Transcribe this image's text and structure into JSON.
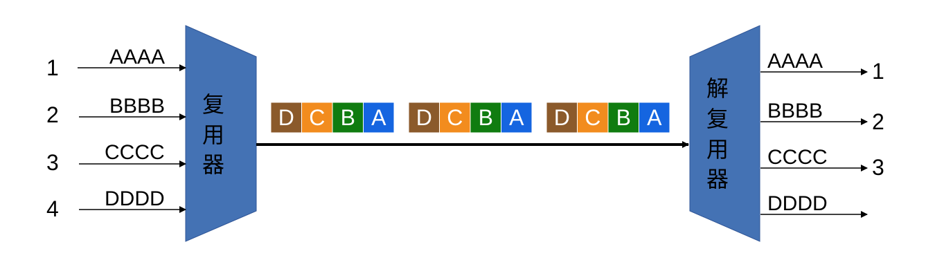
{
  "colors": {
    "device": "#4472b4",
    "device_border": "#2f5597",
    "D": "#8b5a2b",
    "C": "#f28c1e",
    "B": "#107c10",
    "A": "#1565e0",
    "line": "#000000"
  },
  "mux": {
    "label_chars": [
      "复",
      "用",
      "器"
    ],
    "inputs": [
      {
        "number": "1",
        "signal": "AAAA"
      },
      {
        "number": "2",
        "signal": "BBBB"
      },
      {
        "number": "3",
        "signal": "CCCC"
      },
      {
        "number": "4",
        "signal": "DDDD"
      }
    ]
  },
  "demux": {
    "label_chars": [
      "解",
      "复",
      "用",
      "器"
    ],
    "outputs": [
      {
        "number": "1",
        "signal": "AAAA"
      },
      {
        "number": "2",
        "signal": "BBBB"
      },
      {
        "number": "3",
        "signal": "CCCC"
      },
      {
        "number": "",
        "signal": "DDDD"
      }
    ]
  },
  "frames": [
    {
      "cells": [
        "D",
        "C",
        "B",
        "A"
      ]
    },
    {
      "cells": [
        "D",
        "C",
        "B",
        "A"
      ]
    },
    {
      "cells": [
        "D",
        "C",
        "B",
        "A"
      ]
    }
  ]
}
